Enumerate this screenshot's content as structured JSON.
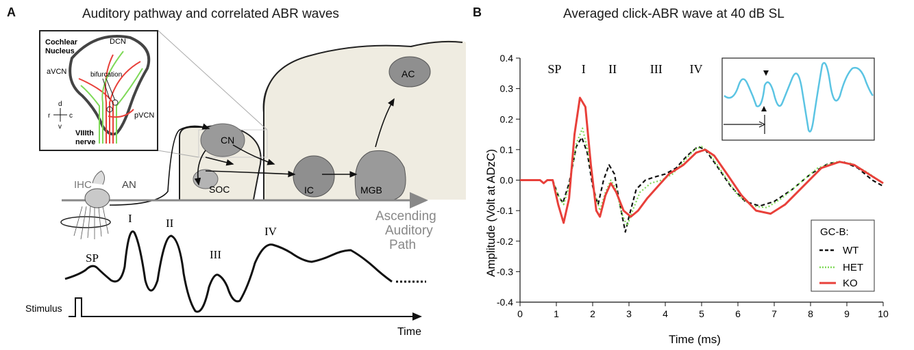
{
  "panel_a": {
    "letter": "A",
    "title": "Auditory pathway and correlated ABR waves",
    "inset": {
      "title_line1": "Cochlear",
      "title_line2": "Nucleus",
      "dcn": "DCN",
      "avcn": "aVCN",
      "pvcn": "pVCN",
      "bifurcation": "bifurcation",
      "nerve_line1": "VIIIth",
      "nerve_line2": "nerve",
      "compass_d": "d",
      "compass_v": "v",
      "compass_r": "r",
      "compass_c": "c"
    },
    "structures": {
      "ihc": "IHC",
      "an": "AN",
      "cn": "CN",
      "soc": "SOC",
      "ic": "IC",
      "mgb": "MGB",
      "ac": "AC"
    },
    "path_label_line1": "Ascending",
    "path_label_line2": "Auditory",
    "path_label_line3": "Path",
    "wave_labels": {
      "sp": "SP",
      "i": "I",
      "ii": "II",
      "iii": "III",
      "iv": "IV"
    },
    "stimulus_label": "Stimulus",
    "time_label": "Time"
  },
  "panel_b": {
    "letter": "B"
  },
  "chart_data": {
    "type": "line",
    "title": "Averaged click-ABR wave at 40 dB SL",
    "xlabel": "Time (ms)",
    "ylabel": "Amplitude (Volt at ADzC)",
    "xlim": [
      0,
      10
    ],
    "ylim": [
      -0.4,
      0.4
    ],
    "xticks": [
      0,
      1,
      2,
      3,
      4,
      5,
      6,
      7,
      8,
      9,
      10
    ],
    "yticks": [
      -0.4,
      -0.3,
      -0.2,
      -0.1,
      0.0,
      0.1,
      0.2,
      0.3,
      0.4
    ],
    "ytick_labels": [
      "-0.4",
      "-0.3",
      "-0.2",
      "-0.1",
      "0.0",
      "0.1",
      "0.2",
      "0.3",
      "0.4"
    ],
    "wave_labels": [
      {
        "label": "SP",
        "x": 0.95
      },
      {
        "label": "I",
        "x": 1.75
      },
      {
        "label": "II",
        "x": 2.55
      },
      {
        "label": "III",
        "x": 3.75
      },
      {
        "label": "IV",
        "x": 4.85
      }
    ],
    "legend": {
      "title": "GC-B:",
      "position": "bottom-right"
    },
    "series": [
      {
        "name": "WT",
        "color": "#111111",
        "style": "dashed",
        "points": [
          [
            0,
            0
          ],
          [
            0.55,
            0
          ],
          [
            0.65,
            -0.01
          ],
          [
            0.75,
            0.0
          ],
          [
            0.9,
            0.0
          ],
          [
            1.05,
            -0.05
          ],
          [
            1.18,
            -0.075
          ],
          [
            1.35,
            -0.01
          ],
          [
            1.55,
            0.11
          ],
          [
            1.7,
            0.14
          ],
          [
            1.85,
            0.09
          ],
          [
            2.0,
            -0.02
          ],
          [
            2.15,
            -0.08
          ],
          [
            2.3,
            0.0
          ],
          [
            2.45,
            0.05
          ],
          [
            2.6,
            0.02
          ],
          [
            2.75,
            -0.08
          ],
          [
            2.9,
            -0.17
          ],
          [
            3.0,
            -0.12
          ],
          [
            3.2,
            -0.03
          ],
          [
            3.45,
            0.0
          ],
          [
            3.7,
            0.01
          ],
          [
            4.0,
            0.02
          ],
          [
            4.3,
            0.04
          ],
          [
            4.6,
            0.08
          ],
          [
            4.9,
            0.11
          ],
          [
            5.1,
            0.1
          ],
          [
            5.4,
            0.05
          ],
          [
            5.8,
            -0.02
          ],
          [
            6.2,
            -0.07
          ],
          [
            6.6,
            -0.085
          ],
          [
            7.0,
            -0.07
          ],
          [
            7.5,
            -0.03
          ],
          [
            8.0,
            0.02
          ],
          [
            8.5,
            0.055
          ],
          [
            8.9,
            0.06
          ],
          [
            9.3,
            0.04
          ],
          [
            9.7,
            0.0
          ],
          [
            10,
            -0.02
          ]
        ]
      },
      {
        "name": "HET",
        "color": "#7ed957",
        "style": "dotted",
        "points": [
          [
            0,
            0
          ],
          [
            0.55,
            0
          ],
          [
            0.65,
            -0.01
          ],
          [
            0.75,
            0.0
          ],
          [
            0.9,
            0.0
          ],
          [
            1.05,
            -0.05
          ],
          [
            1.2,
            -0.08
          ],
          [
            1.35,
            -0.02
          ],
          [
            1.55,
            0.12
          ],
          [
            1.72,
            0.17
          ],
          [
            1.88,
            0.09
          ],
          [
            2.05,
            -0.04
          ],
          [
            2.2,
            -0.1
          ],
          [
            2.35,
            -0.04
          ],
          [
            2.5,
            0.0
          ],
          [
            2.65,
            -0.03
          ],
          [
            2.8,
            -0.11
          ],
          [
            2.95,
            -0.15
          ],
          [
            3.1,
            -0.1
          ],
          [
            3.3,
            -0.04
          ],
          [
            3.6,
            -0.01
          ],
          [
            3.9,
            0.0
          ],
          [
            4.2,
            0.02
          ],
          [
            4.5,
            0.06
          ],
          [
            4.8,
            0.1
          ],
          [
            5.0,
            0.11
          ],
          [
            5.2,
            0.09
          ],
          [
            5.6,
            0.02
          ],
          [
            6.0,
            -0.05
          ],
          [
            6.4,
            -0.085
          ],
          [
            6.8,
            -0.09
          ],
          [
            7.2,
            -0.06
          ],
          [
            7.7,
            -0.01
          ],
          [
            8.2,
            0.04
          ],
          [
            8.7,
            0.06
          ],
          [
            9.1,
            0.055
          ],
          [
            9.5,
            0.03
          ],
          [
            10,
            -0.01
          ]
        ]
      },
      {
        "name": "KO",
        "color": "#e8403a",
        "style": "solid",
        "points": [
          [
            0,
            0
          ],
          [
            0.55,
            0
          ],
          [
            0.65,
            -0.01
          ],
          [
            0.75,
            0.0
          ],
          [
            0.9,
            0.0
          ],
          [
            1.05,
            -0.08
          ],
          [
            1.2,
            -0.14
          ],
          [
            1.35,
            -0.06
          ],
          [
            1.5,
            0.15
          ],
          [
            1.65,
            0.27
          ],
          [
            1.8,
            0.24
          ],
          [
            1.95,
            0.05
          ],
          [
            2.1,
            -0.1
          ],
          [
            2.2,
            -0.12
          ],
          [
            2.35,
            -0.05
          ],
          [
            2.5,
            -0.01
          ],
          [
            2.65,
            -0.04
          ],
          [
            2.85,
            -0.1
          ],
          [
            3.05,
            -0.12
          ],
          [
            3.25,
            -0.1
          ],
          [
            3.5,
            -0.06
          ],
          [
            3.8,
            -0.02
          ],
          [
            4.1,
            0.02
          ],
          [
            4.5,
            0.05
          ],
          [
            4.85,
            0.09
          ],
          [
            5.1,
            0.1
          ],
          [
            5.35,
            0.08
          ],
          [
            5.7,
            0.02
          ],
          [
            6.1,
            -0.05
          ],
          [
            6.5,
            -0.1
          ],
          [
            6.9,
            -0.11
          ],
          [
            7.3,
            -0.08
          ],
          [
            7.8,
            -0.02
          ],
          [
            8.3,
            0.04
          ],
          [
            8.8,
            0.06
          ],
          [
            9.2,
            0.05
          ],
          [
            9.6,
            0.02
          ],
          [
            10,
            -0.01
          ]
        ]
      }
    ]
  }
}
